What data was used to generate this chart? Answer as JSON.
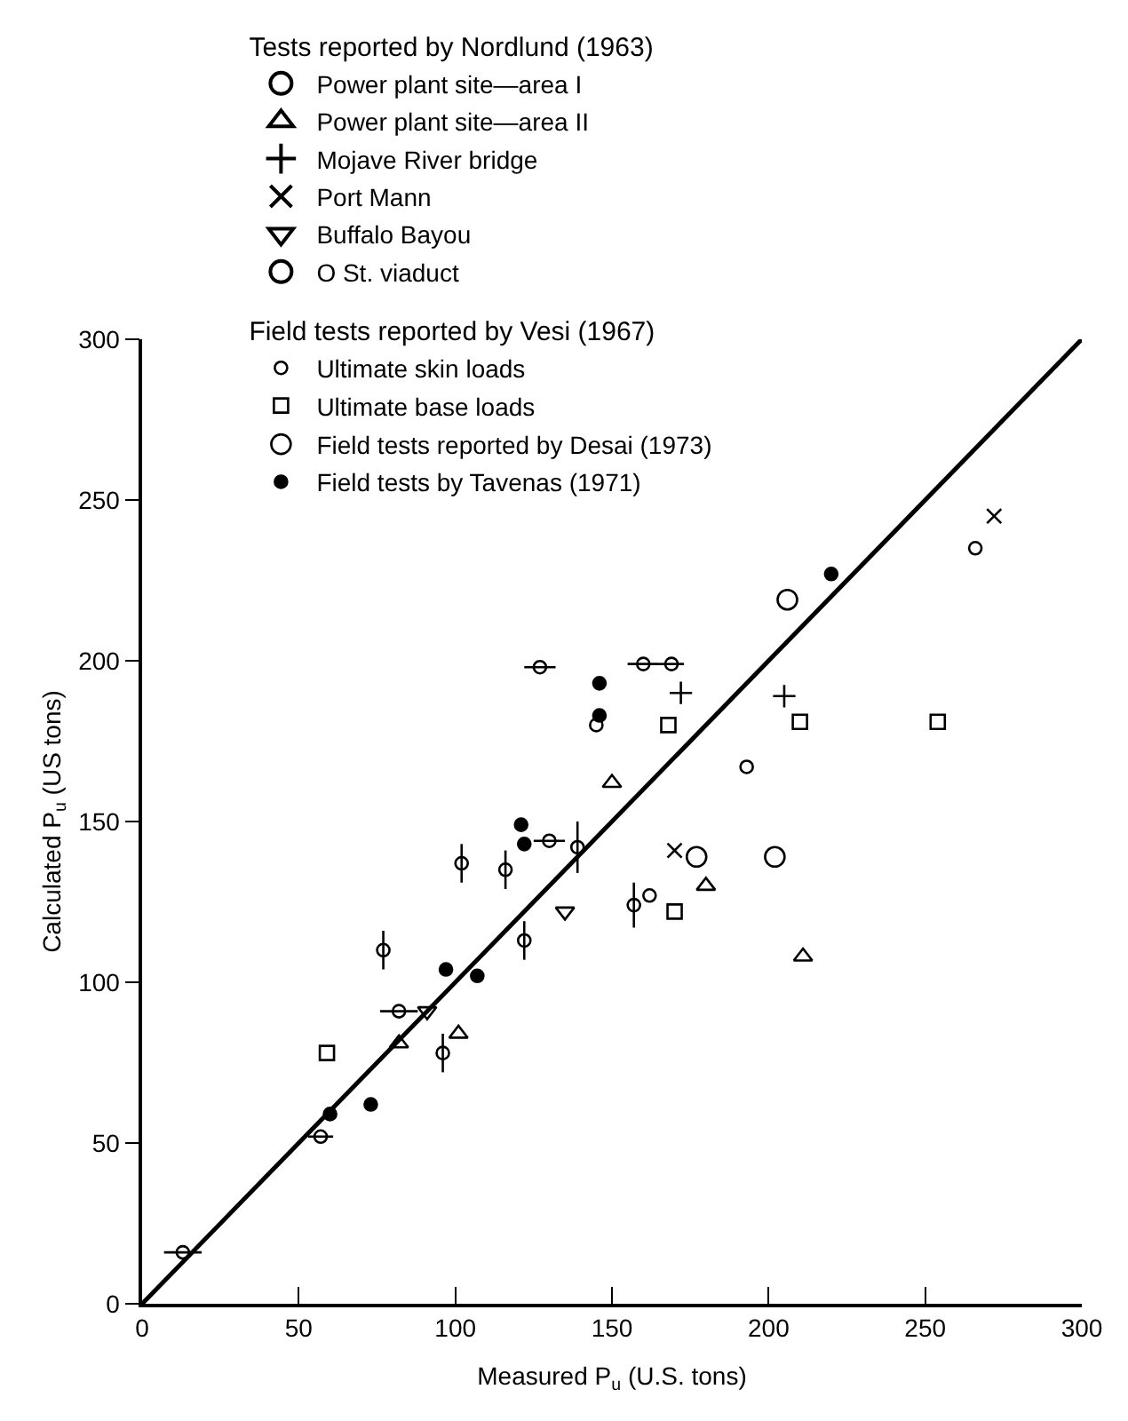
{
  "chart_data": {
    "type": "scatter",
    "xlabel": "Measured P$_{u}$ (U.S. tons)",
    "ylabel": "Calculated P$_{u}$ (US tons)",
    "legend_title": "Tests reported by Nordlund (1963)",
    "annotations": [
      "Field tests reported by Vesi (1967)"
    ],
    "xlim": [
      0,
      300
    ],
    "ylim": [
      0,
      300
    ],
    "xticks": [
      0,
      50,
      100,
      150,
      200,
      250,
      300
    ],
    "yticks": [
      0,
      50,
      100,
      150,
      200,
      250,
      300
    ],
    "legend": "top left",
    "series": [
      {
        "name": "Power plant site—area I",
        "marker": "circle",
        "color": "#000000",
        "x": [
          145,
          162,
          193,
          266
        ],
        "values": [
          180,
          127,
          167,
          235
        ]
      },
      {
        "name": "Power plant site—area II",
        "marker": "triangle",
        "color": "#000000",
        "x": [
          82,
          101,
          150,
          180,
          211
        ],
        "values": [
          81,
          84,
          162,
          130,
          108
        ]
      },
      {
        "name": "Mojave River bridge",
        "marker": "cross",
        "color": "#000000",
        "x": [
          172,
          205
        ],
        "values": [
          190,
          189
        ]
      },
      {
        "name": "Port Mann",
        "marker": "x",
        "color": "#000000",
        "x": [
          170,
          272
        ],
        "values": [
          141,
          245
        ]
      },
      {
        "name": "Buffalo Bayou",
        "marker": "triangle-down",
        "color": "#000000",
        "x": [
          91,
          135
        ],
        "values": [
          91,
          122
        ]
      },
      {
        "name": "O St. viaduct",
        "marker": "circle",
        "color": "#000000",
        "x": [
          77,
          96,
          102,
          116,
          122,
          139,
          157
        ],
        "values": [
          110,
          78,
          137,
          135,
          113,
          142,
          124
        ],
        "errors": [
          6,
          6,
          6,
          6,
          6,
          8,
          7
        ]
      },
      {
        "name": "Ultimate skin loads",
        "marker": "circle",
        "color": "#000000",
        "x": [
          127,
          160,
          169,
          130,
          82,
          57,
          13
        ],
        "values": [
          198,
          199,
          199,
          144,
          91,
          52,
          16
        ],
        "xerrors": [
          5,
          5,
          4,
          5,
          6,
          4,
          6
        ]
      },
      {
        "name": "Ultimate base loads",
        "marker": "square",
        "color": "#000000",
        "x": [
          59,
          168,
          210,
          254,
          170
        ],
        "values": [
          78,
          180,
          181,
          181,
          122
        ]
      },
      {
        "name": "Field tests reported by Desai (1973)",
        "marker": "circle-large",
        "color": "#000000",
        "x": [
          206,
          202,
          177
        ],
        "values": [
          219,
          139,
          139
        ]
      },
      {
        "name": "Field tests by Tavenas (1971)",
        "marker": "circle-filled",
        "color": "#000000",
        "x": [
          146,
          146,
          121,
          122,
          97,
          107,
          73,
          60,
          220
        ],
        "values": [
          193,
          183,
          149,
          143,
          104,
          102,
          62,
          59,
          227
        ]
      },
      {
        "type": "line",
        "color": "#000000",
        "x": [
          0,
          300
        ],
        "values": [
          0,
          300
        ]
      }
    ]
  }
}
